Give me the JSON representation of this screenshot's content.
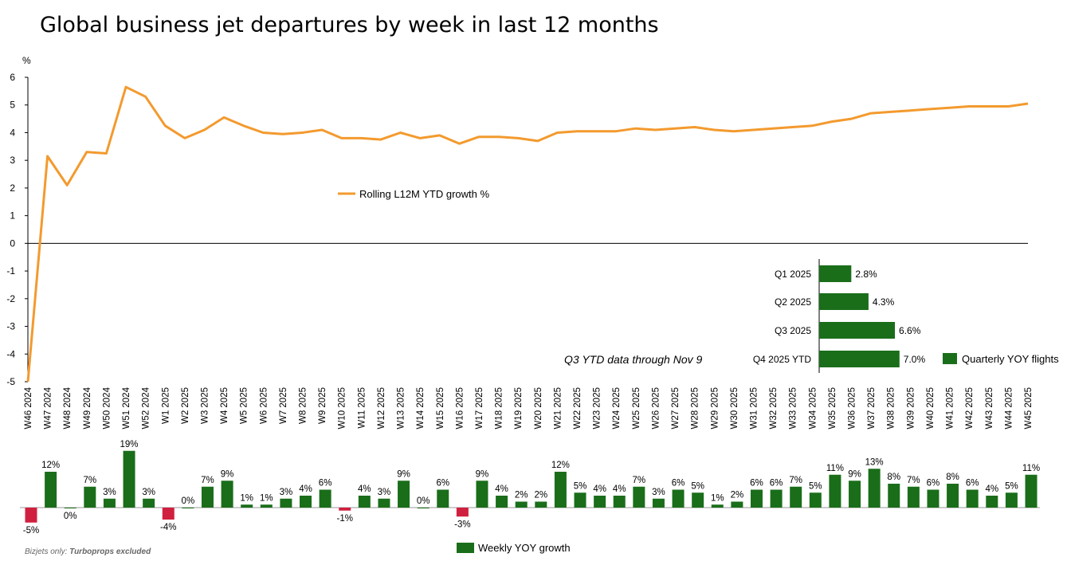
{
  "title": "Global business jet departures by week in last 12 months",
  "colors": {
    "line": "#f39a2e",
    "positive": "#1a6e1a",
    "negative": "#d0203f"
  },
  "chart_data": [
    {
      "type": "line",
      "title": "Global business jet departures by week in last 12 months",
      "ylabel": "%",
      "ylim": [
        -5,
        6
      ],
      "yticks": [
        "6",
        "5",
        "4",
        "3",
        "2",
        "1",
        "0",
        "-1",
        "-2",
        "-3",
        "-4",
        "-5"
      ],
      "grid": false,
      "legend": "center",
      "categories": [
        "W46 2024",
        "W47 2024",
        "W48 2024",
        "W49 2024",
        "W50 2024",
        "W51 2024",
        "W52 2024",
        "W1 2025",
        "W2 2025",
        "W3 2025",
        "W4 2025",
        "W5 2025",
        "W6 2025",
        "W7 2025",
        "W8 2025",
        "W9 2025",
        "W10 2025",
        "W11 2025",
        "W12 2025",
        "W13 2025",
        "W14 2025",
        "W15 2025",
        "W16 2025",
        "W17 2025",
        "W18 2025",
        "W19 2025",
        "W20 2025",
        "W21 2025",
        "W22 2025",
        "W23 2025",
        "W24 2025",
        "W25 2025",
        "W26 2025",
        "W27 2025",
        "W28 2025",
        "W29 2025",
        "W30 2025",
        "W31 2025",
        "W32 2025",
        "W33 2025",
        "W34 2025",
        "W35 2025",
        "W36 2025",
        "W37 2025",
        "W38 2025",
        "W39 2025",
        "W40 2025",
        "W41 2025",
        "W42 2025",
        "W43 2025",
        "W44 2025",
        "W45 2025"
      ],
      "series": [
        {
          "name": "Rolling L12M YTD growth %",
          "values": [
            -5.0,
            3.15,
            2.1,
            3.3,
            3.25,
            5.65,
            5.3,
            4.25,
            3.8,
            4.1,
            4.55,
            4.25,
            4.0,
            3.95,
            4.0,
            4.1,
            3.8,
            3.8,
            3.75,
            4.0,
            3.8,
            3.9,
            3.6,
            3.85,
            3.85,
            3.8,
            3.7,
            4.0,
            4.05,
            4.05,
            4.05,
            4.15,
            4.1,
            4.15,
            4.2,
            4.1,
            4.05,
            4.1,
            4.15,
            4.2,
            4.25,
            4.4,
            4.5,
            4.7,
            4.75,
            4.8,
            4.85,
            4.9,
            4.95,
            4.95,
            4.95,
            5.05
          ]
        }
      ]
    },
    {
      "type": "bar",
      "title": "Weekly YOY growth",
      "series": [
        {
          "name": "Weekly YOY growth",
          "values": [
            -5,
            12,
            0,
            7,
            3,
            19,
            3,
            -4,
            0,
            7,
            9,
            1,
            1,
            3,
            4,
            6,
            -1,
            4,
            3,
            9,
            0,
            6,
            -3,
            9,
            4,
            2,
            2,
            12,
            5,
            4,
            4,
            7,
            3,
            6,
            5,
            1,
            2,
            6,
            6,
            7,
            5,
            11,
            9,
            13,
            8,
            7,
            6,
            8,
            6,
            4,
            5,
            11
          ],
          "labels": [
            "-5%",
            "12%",
            "0%",
            "7%",
            "3%",
            "19%",
            "3%",
            "-4%",
            "0%",
            "7%",
            "9%",
            "1%",
            "1%",
            "3%",
            "4%",
            "6%",
            "-1%",
            "4%",
            "3%",
            "9%",
            "0%",
            "6%",
            "-3%",
            "9%",
            "4%",
            "2%",
            "2%",
            "12%",
            "5%",
            "4%",
            "4%",
            "7%",
            "3%",
            "6%",
            "5%",
            "1%",
            "2%",
            "6%",
            "6%",
            "7%",
            "5%",
            "11%",
            "9%",
            "13%",
            "8%",
            "7%",
            "6%",
            "8%",
            "6%",
            "4%",
            "5%",
            "11%"
          ]
        }
      ],
      "legend": "bottom-center"
    },
    {
      "type": "bar",
      "orientation": "horizontal",
      "categories": [
        "Q1 2025",
        "Q2 2025",
        "Q3 2025",
        "Q4 2025 YTD"
      ],
      "values": [
        2.8,
        4.3,
        6.6,
        7.0
      ],
      "labels": [
        "2.8%",
        "4.3%",
        "6.6%",
        "7.0%"
      ],
      "legend": "Quarterly YOY flights"
    }
  ],
  "annotations": {
    "note": "Q3 YTD data through Nov 9",
    "footnote_prefix": "Bizjets only: ",
    "footnote_emphasis": "Turboprops excluded"
  }
}
